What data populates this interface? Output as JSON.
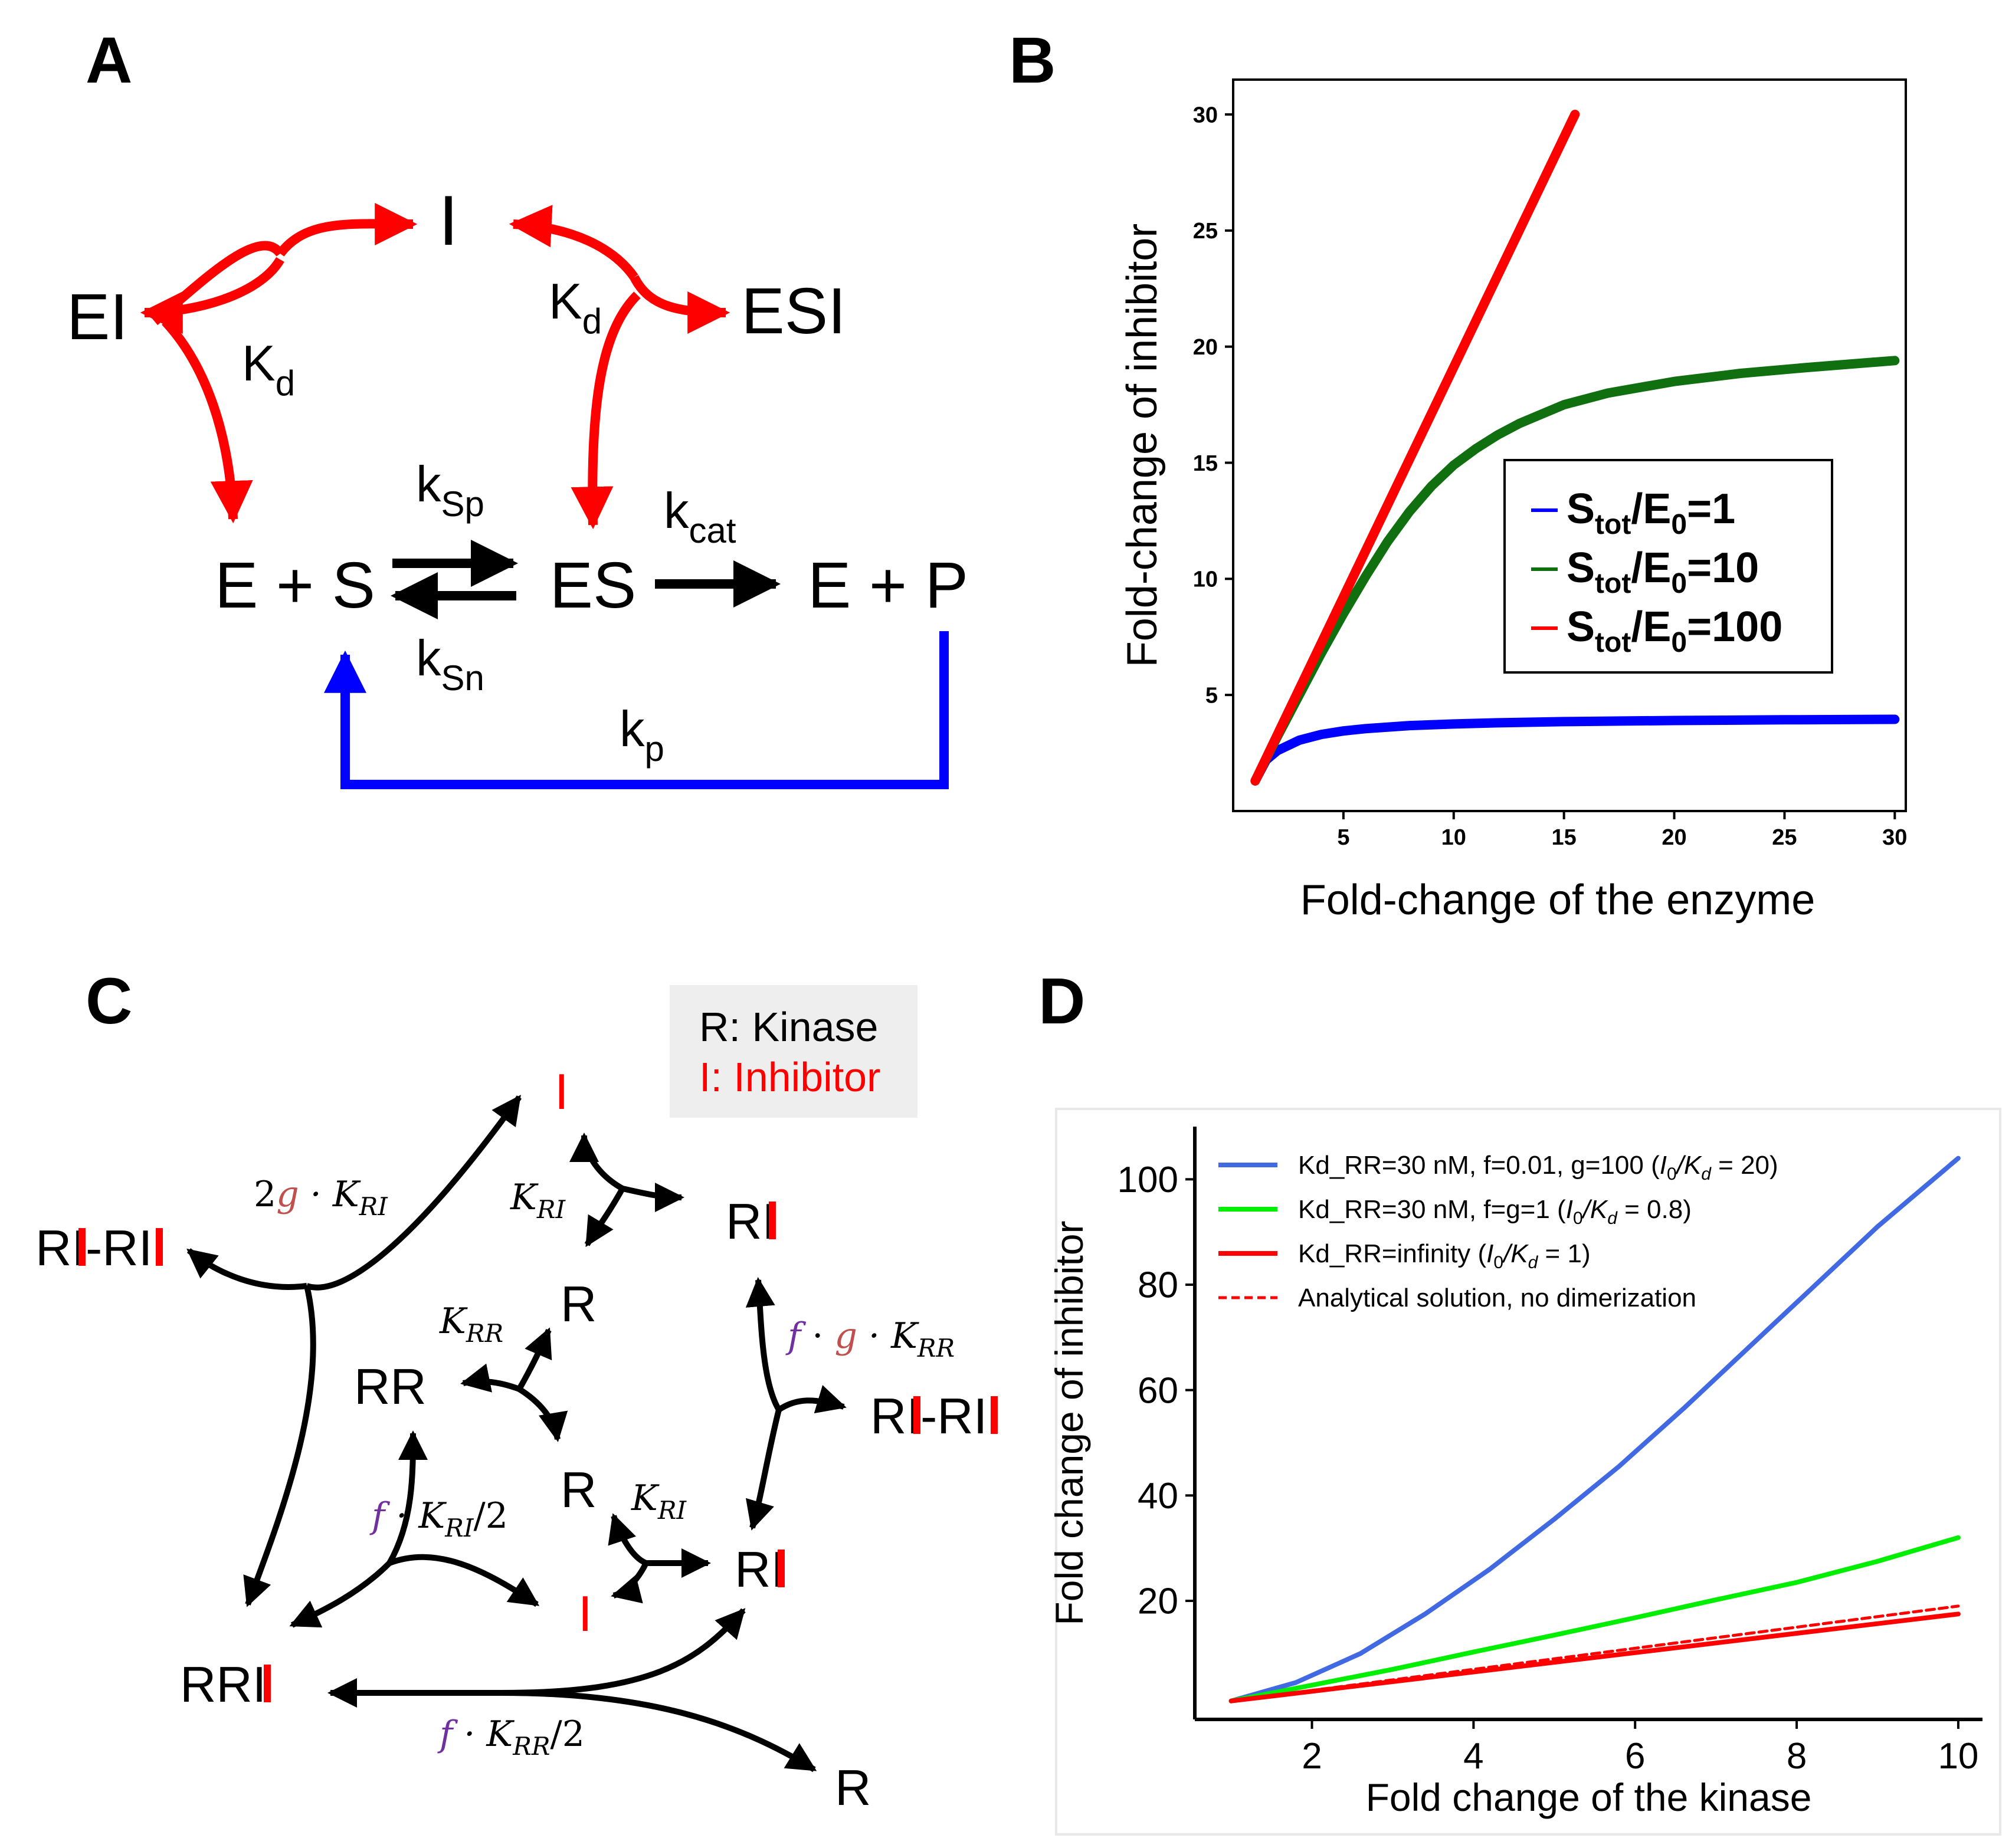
{
  "panels": {
    "a": {
      "label": "A",
      "species": {
        "I": "I",
        "EI": "EI",
        "ESI": "ESI",
        "E_plus_S": "E + S",
        "ES": "ES",
        "E_plus_P": "E + P"
      },
      "rates": {
        "Kd_left": "K",
        "Kd_left_sub": "d",
        "Kd_right": "K",
        "Kd_right_sub": "d",
        "kSp": "k",
        "kSp_sub": "Sp",
        "kSn": "k",
        "kSn_sub": "Sn",
        "kcat": "k",
        "kcat_sub": "cat",
        "kp": "k",
        "kp_sub": "p"
      },
      "colors": {
        "inhibition": "#ff0000",
        "recycle": "#0000ff",
        "reaction": "#000000"
      }
    },
    "b": {
      "label": "B"
    },
    "c": {
      "label": "C",
      "legend": {
        "kinase": "R: Kinase",
        "inhibitor": "I: Inhibitor"
      },
      "species": {
        "RI_RI_left": "RI-RI",
        "RI_RI_right": "RI-RI",
        "I_top": "I",
        "RI_top": "RI",
        "R_upper": "R",
        "RR": "RR",
        "R_mid": "R",
        "RI_mid": "RI",
        "I_bottom": "I",
        "RRI": "RRI",
        "R_bottom": "R"
      },
      "rates": {
        "two_g_KRI": {
          "c": "2",
          "g": "g",
          "rest": " · K",
          "sub": "RI"
        },
        "KRI_top": {
          "k": "K",
          "sub": "RI"
        },
        "KRR": {
          "k": "K",
          "sub": "RR"
        },
        "f_g_KRR": {
          "f": "f",
          "dot1": " · ",
          "g": "g",
          "rest": " · K",
          "sub": "RR"
        },
        "KRI_mid": {
          "k": "K",
          "sub": "RI"
        },
        "f_KRI_2": {
          "f": "f",
          "rest": " · K",
          "sub": "RI",
          "tail": "/2"
        },
        "f_KRR_2": {
          "f": "f",
          "rest": " · K",
          "sub": "RR",
          "tail": "/2"
        }
      },
      "colors": {
        "inhibitor": "#ff0000",
        "f_color": "#7030a0",
        "g_color": "#c0504d",
        "legend_bg": "#eeeeee"
      }
    },
    "d": {
      "label": "D"
    }
  },
  "chart_data": [
    {
      "id": "B",
      "type": "line",
      "title": "",
      "xlabel": "Fold-change of the enzyme",
      "ylabel": "Fold-change of inhibitor",
      "xlim": [
        0,
        30.5
      ],
      "ylim": [
        0,
        31.5
      ],
      "xticks": [
        5,
        10,
        15,
        20,
        25,
        30
      ],
      "yticks": [
        5,
        10,
        15,
        20,
        25,
        30
      ],
      "grid": false,
      "legend_position": "center-right",
      "series": [
        {
          "name_main": "S",
          "name_sub1": "tot",
          "name_mid": "/E",
          "name_sub2": "0",
          "name_tail": "=1",
          "color": "#0000ff",
          "x": [
            1,
            1.5,
            2,
            3,
            4,
            5,
            6,
            8,
            10,
            12,
            15,
            20,
            25,
            30
          ],
          "y": [
            1.3,
            2.2,
            2.6,
            3.05,
            3.3,
            3.45,
            3.55,
            3.68,
            3.75,
            3.8,
            3.85,
            3.9,
            3.93,
            3.95
          ]
        },
        {
          "name_main": "S",
          "name_sub1": "tot",
          "name_mid": "/E",
          "name_sub2": "0",
          "name_tail": "=10",
          "color": "#107010",
          "x": [
            1,
            2,
            3,
            4,
            5,
            6,
            7,
            8,
            9,
            10,
            11,
            12,
            13,
            14,
            15,
            17,
            20,
            23,
            26,
            30
          ],
          "y": [
            1.3,
            3.2,
            5.0,
            6.8,
            8.5,
            10.1,
            11.6,
            12.9,
            14.0,
            14.9,
            15.6,
            16.2,
            16.7,
            17.1,
            17.5,
            18.0,
            18.5,
            18.85,
            19.1,
            19.4
          ]
        },
        {
          "name_main": "S",
          "name_sub1": "tot",
          "name_mid": "/E",
          "name_sub2": "0",
          "name_tail": "=100",
          "color": "#ff0000",
          "x": [
            1,
            15.5
          ],
          "y": [
            1.3,
            30
          ]
        }
      ]
    },
    {
      "id": "D",
      "type": "line",
      "title": "",
      "xlabel": "Fold change of the kinase",
      "ylabel": "Fold change of inhibitor",
      "xlim": [
        0.55,
        10.3
      ],
      "ylim": [
        -2.5,
        110
      ],
      "xticks": [
        2,
        4,
        6,
        8,
        10
      ],
      "yticks": [
        20,
        40,
        60,
        80,
        100
      ],
      "grid": false,
      "legend_position": "top-left",
      "series": [
        {
          "name": "Kd_RR=30 nM, f=0.01, g=100 (",
          "name_math": "I",
          "name_sub": "0",
          "name_mid": "/K",
          "name_sub2": "d",
          "name_tail": " = 20)",
          "color": "#4169e1",
          "dash": "",
          "x": [
            1,
            1.8,
            2.6,
            3.4,
            4.2,
            5,
            5.8,
            6.6,
            7.4,
            8.2,
            9,
            10
          ],
          "y": [
            1,
            4.5,
            10,
            17.5,
            26,
            35.5,
            45.5,
            56.5,
            68,
            79.5,
            91,
            104
          ]
        },
        {
          "name": "Kd_RR=30 nM, f=g=1 (",
          "name_math": "I",
          "name_sub": "0",
          "name_mid": "/K",
          "name_sub2": "d",
          "name_tail": " = 0.8)",
          "color": "#00ee00",
          "dash": "",
          "x": [
            1,
            2,
            3,
            4,
            5,
            6,
            7,
            8,
            9,
            10
          ],
          "y": [
            1,
            4,
            7,
            10.3,
            13.5,
            16.8,
            20.2,
            23.5,
            27.5,
            32
          ]
        },
        {
          "name": "Kd_RR=infinity (",
          "name_math": "I",
          "name_sub": "0",
          "name_mid": "/K",
          "name_sub2": "d",
          "name_tail": " = 1)",
          "color": "#ff0000",
          "dash": "",
          "x": [
            1,
            10
          ],
          "y": [
            1,
            17.5
          ]
        },
        {
          "name": "Analytical solution, no dimerization",
          "name_math": "",
          "name_sub": "",
          "name_mid": "",
          "name_sub2": "",
          "name_tail": "",
          "color": "#ff0000",
          "dash": "14,8",
          "x": [
            1,
            10
          ],
          "y": [
            1,
            19
          ]
        }
      ]
    }
  ]
}
